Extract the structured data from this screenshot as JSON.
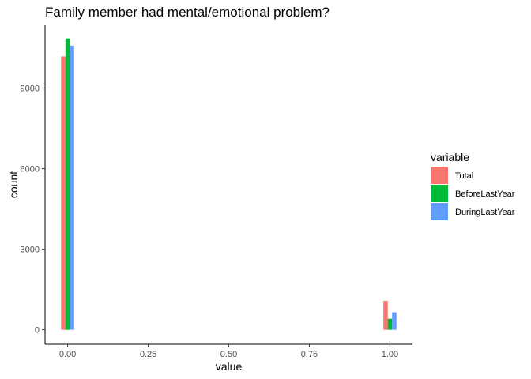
{
  "chart_data": {
    "type": "bar",
    "title": "Family member had mental/emotional problem?",
    "xlabel": "value",
    "ylabel": "count",
    "x": [
      0,
      1
    ],
    "xticks": [
      "0.00",
      "0.25",
      "0.50",
      "0.75",
      "1.00"
    ],
    "xlim": [
      -0.07,
      1.07
    ],
    "yticks": [
      "0",
      "3000",
      "6000",
      "9000"
    ],
    "ylim": [
      -540,
      11340
    ],
    "grid": false,
    "legend_title": "variable",
    "legend_position": "right",
    "series": [
      {
        "name": "Total",
        "values": [
          10180,
          1080
        ],
        "color": "#F8766D"
      },
      {
        "name": "BeforeLastYear",
        "values": [
          10850,
          410
        ],
        "color": "#00BA38"
      },
      {
        "name": "DuringLastYear",
        "values": [
          10580,
          650
        ],
        "color": "#619CFF"
      }
    ]
  }
}
